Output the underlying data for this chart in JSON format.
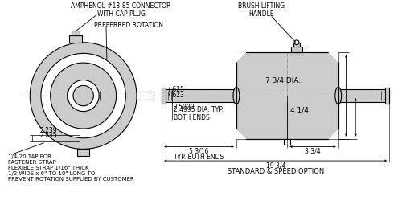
{
  "bg_color": "#ffffff",
  "line_color": "#000000",
  "gray_fill": "#cccccc",
  "labels": {
    "connector": "AMPHENOL #18-85 CONNECTOR\nWITH CAP PLUG",
    "rotation": "PREFERRED ROTATION",
    "brush": "BRUSH LIFTING\nHANDLE",
    "tap": "1/4-20 TAP FOR\nFASTENER STRAP\nFLEXIBLE STRAP 1/16\" THICK\n1/2 WIDE x 6\" TO 10\" LONG TO\nPREVENT ROTATION SUPPLIED BY CUSTOMER",
    "dim_625": ".625",
    "dim_623": ".623",
    "dim_25000": "2.5000",
    "dim_24995": "2.4995 DIA. TYP.\nBOTH ENDS",
    "dim_2239": "2.239",
    "dim_2235": "2.235",
    "dim_dia": "7 3/4 DIA.",
    "dim_414": "4 1/4",
    "dim_516": "5 3/16",
    "dim_tyb": "TYP. BOTH ENDS",
    "dim_334": "3 3/4",
    "dim_1934": "19 3/4",
    "std_spd": "STANDARD & SPEED OPTION"
  },
  "figsize": [
    5.0,
    2.6
  ],
  "dpi": 100
}
